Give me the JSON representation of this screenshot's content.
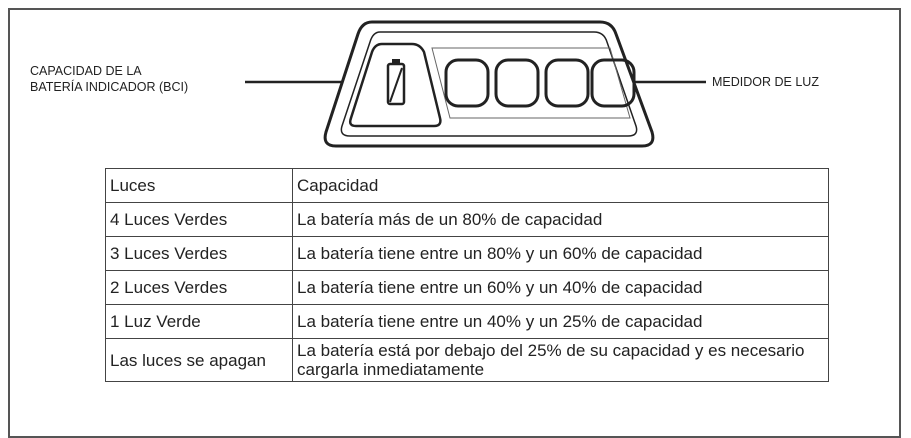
{
  "labels": {
    "bci": [
      "CAPACIDAD DE LA",
      "BATERÍA INDICADOR (BCI)"
    ],
    "meter": "MEDIDOR DE LUZ"
  },
  "table": {
    "header": [
      "Luces",
      "Capacidad"
    ],
    "rows": [
      [
        "4 Luces Verdes",
        "La batería más de un 80% de capacidad"
      ],
      [
        "3 Luces Verdes",
        "La batería tiene entre un 80% y un 60% de capacidad"
      ],
      [
        "2 Luces Verdes",
        "La batería tiene entre un 60% y un 40% de capacidad"
      ],
      [
        "1 Luz Verde",
        "La batería tiene entre un 40% y un 25% de capacidad"
      ],
      [
        "Las luces se apagan",
        "La batería está por debajo del 25% de su capacidad y es necesario cargarla inmediatamente"
      ]
    ]
  }
}
